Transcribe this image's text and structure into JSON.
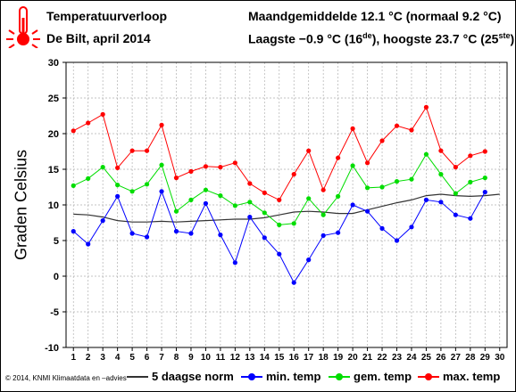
{
  "header": {
    "title": "Temperatuurverloop",
    "subtitle": "De Bilt, april 2014",
    "monthly": "Maandgemiddelde 12.1 °C (normaal 9.2 °C)",
    "extremes_prefix": "Laagste −0.9 °C (16",
    "extremes_sup1": "de",
    "extremes_mid": "), hoogste 23.7 °C (25",
    "extremes_sup2": "ste",
    "extremes_suffix": ")"
  },
  "footer": {
    "credit": "© 2014, KNMI Klimaatdata en –advies"
  },
  "legend": {
    "norm": "5 daagse norm",
    "min": "min. temp",
    "avg": "gem. temp",
    "max": "max. temp"
  },
  "colors": {
    "norm": "#333333",
    "min": "#0000ff",
    "avg": "#00dd00",
    "max": "#ff0000",
    "thermometer": "#ff0000"
  },
  "icons": {
    "thermometer": "thermometer-icon"
  },
  "chart_data": {
    "type": "line",
    "ylabel": "Graden Celsius",
    "xlabel": "",
    "x": [
      1,
      2,
      3,
      4,
      5,
      6,
      7,
      8,
      9,
      10,
      11,
      12,
      13,
      14,
      15,
      16,
      17,
      18,
      19,
      20,
      21,
      22,
      23,
      24,
      25,
      26,
      27,
      28,
      29,
      30
    ],
    "xlim": [
      0.5,
      30.5
    ],
    "ylim": [
      -10,
      30
    ],
    "yticks": [
      -10,
      -5,
      0,
      5,
      10,
      15,
      20,
      25,
      30
    ],
    "grid": true,
    "series": [
      {
        "name": "5 daagse norm",
        "key": "norm",
        "markers": false,
        "x": [
          1,
          2,
          3,
          4,
          5,
          6,
          7,
          8,
          9,
          10,
          11,
          12,
          13,
          14,
          15,
          16,
          17,
          18,
          19,
          20,
          21,
          22,
          23,
          24,
          25,
          26,
          27,
          28,
          29,
          30
        ],
        "values": [
          8.7,
          8.6,
          8.3,
          7.8,
          7.6,
          7.6,
          7.7,
          7.6,
          7.7,
          7.8,
          7.9,
          8.0,
          8.0,
          8.2,
          8.6,
          9.0,
          9.1,
          9.0,
          8.8,
          8.8,
          9.3,
          9.8,
          10.3,
          10.7,
          11.3,
          11.5,
          11.3,
          11.2,
          11.3,
          11.5
        ]
      },
      {
        "name": "min. temp",
        "key": "min",
        "markers": true,
        "x": [
          1,
          2,
          3,
          4,
          5,
          6,
          7,
          8,
          9,
          10,
          11,
          12,
          13,
          14,
          15,
          16,
          17,
          18,
          19,
          20,
          21,
          22,
          23,
          24,
          25,
          26,
          27,
          28,
          29
        ],
        "values": [
          6.3,
          4.5,
          7.8,
          11.2,
          6.0,
          5.5,
          11.9,
          6.3,
          6.0,
          10.2,
          5.8,
          1.9,
          8.3,
          5.4,
          3.1,
          -0.9,
          2.3,
          5.7,
          6.1,
          10.0,
          9.1,
          6.7,
          5.0,
          6.9,
          10.7,
          10.4,
          8.6,
          8.1,
          11.8
        ]
      },
      {
        "name": "gem. temp",
        "key": "avg",
        "markers": true,
        "x": [
          1,
          2,
          3,
          4,
          5,
          6,
          7,
          8,
          9,
          10,
          11,
          12,
          13,
          14,
          15,
          16,
          17,
          18,
          19,
          20,
          21,
          22,
          23,
          24,
          25,
          26,
          27,
          28,
          29
        ],
        "values": [
          12.7,
          13.7,
          15.3,
          12.8,
          11.9,
          12.9,
          15.6,
          9.1,
          10.7,
          12.1,
          11.3,
          9.9,
          10.4,
          8.9,
          7.2,
          7.4,
          10.9,
          8.6,
          11.2,
          15.5,
          12.4,
          12.5,
          13.3,
          13.6,
          17.1,
          14.3,
          11.6,
          13.2,
          13.8
        ]
      },
      {
        "name": "max. temp",
        "key": "max",
        "markers": true,
        "x": [
          1,
          2,
          3,
          4,
          5,
          6,
          7,
          8,
          9,
          10,
          11,
          12,
          13,
          14,
          15,
          16,
          17,
          18,
          19,
          20,
          21,
          22,
          23,
          24,
          25,
          26,
          27,
          28,
          29
        ],
        "values": [
          20.4,
          21.5,
          22.7,
          15.2,
          17.6,
          17.6,
          21.2,
          13.8,
          14.7,
          15.4,
          15.3,
          15.9,
          13.0,
          11.7,
          10.7,
          14.3,
          17.6,
          12.1,
          16.6,
          20.7,
          15.9,
          19.0,
          21.1,
          20.5,
          23.7,
          17.6,
          15.3,
          16.9,
          17.5
        ]
      }
    ]
  }
}
